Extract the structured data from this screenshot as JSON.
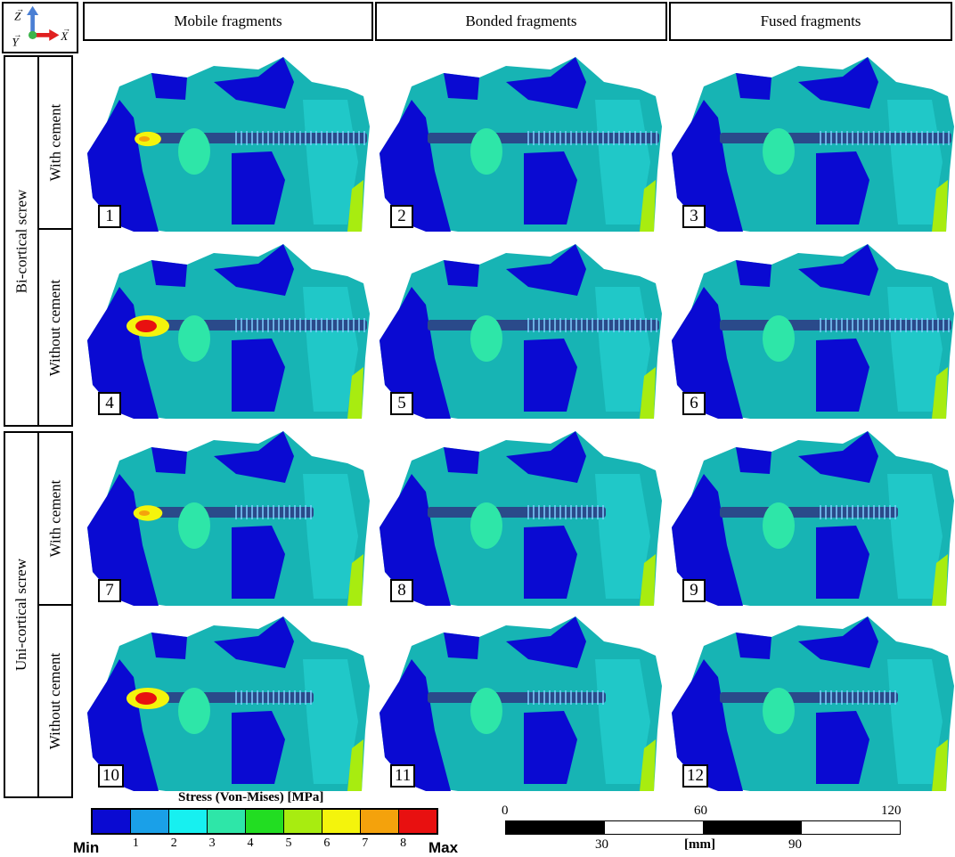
{
  "axes_triad": {
    "z": "Z",
    "y": "Y",
    "x": "X",
    "z_color": "#4a7fd4",
    "x_color": "#e02020",
    "y_color": "#3cb44b"
  },
  "column_headers": [
    "Mobile fragments",
    "Bonded fragments",
    "Fused fragments"
  ],
  "row_groups": [
    {
      "label": "Bi-cortical screw",
      "rows": [
        "With cement",
        "Without cement"
      ]
    },
    {
      "label": "Uni-cortical screw",
      "rows": [
        "With cement",
        "Without cement"
      ]
    }
  ],
  "panels": [
    {
      "number": "1",
      "screw": "bi",
      "hot": 0.35
    },
    {
      "number": "2",
      "screw": "bi",
      "hot": 0.1
    },
    {
      "number": "3",
      "screw": "bi",
      "hot": 0.05
    },
    {
      "number": "4",
      "screw": "bi",
      "hot": 1.0
    },
    {
      "number": "5",
      "screw": "bi",
      "hot": 0.15
    },
    {
      "number": "6",
      "screw": "bi",
      "hot": 0.15
    },
    {
      "number": "7",
      "screw": "uni",
      "hot": 0.45
    },
    {
      "number": "8",
      "screw": "uni",
      "hot": 0.1
    },
    {
      "number": "9",
      "screw": "uni",
      "hot": 0.05
    },
    {
      "number": "10",
      "screw": "uni",
      "hot": 1.0
    },
    {
      "number": "11",
      "screw": "uni",
      "hot": 0.1
    },
    {
      "number": "12",
      "screw": "uni",
      "hot": 0.1
    }
  ],
  "colorbar": {
    "title": "Stress (Von-Mises) [MPa]",
    "min_label": "Min",
    "max_label": "Max",
    "ticks": [
      "1",
      "2",
      "3",
      "4",
      "5",
      "6",
      "7",
      "8"
    ],
    "colors": [
      "#0a0ad2",
      "#1aa0e8",
      "#17f0f0",
      "#2ee6a8",
      "#22dd22",
      "#a8ec10",
      "#f4f40c",
      "#f4a20c",
      "#e81010"
    ]
  },
  "scalebar": {
    "unit": "[mm]",
    "top_labels": [
      "0",
      "60",
      "120"
    ],
    "bottom_labels": [
      "30",
      "90"
    ]
  }
}
